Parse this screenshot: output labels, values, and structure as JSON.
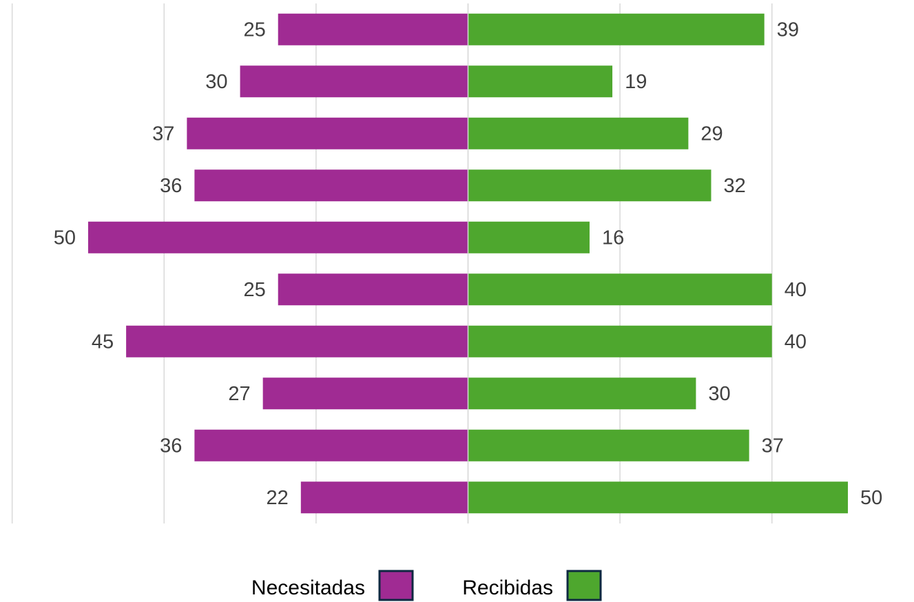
{
  "chart_data": {
    "type": "diverging-bar",
    "categories": [
      null,
      null,
      null,
      null,
      null,
      null,
      null,
      null,
      null,
      null
    ],
    "series": [
      {
        "name": "Necesitadas",
        "color": "#a02b93",
        "direction": "left",
        "values": [
          25,
          30,
          37,
          36,
          50,
          25,
          45,
          27,
          36,
          22
        ]
      },
      {
        "name": "Recibidas",
        "color": "#4ea72e",
        "direction": "right",
        "values": [
          39,
          19,
          29,
          32,
          16,
          40,
          40,
          30,
          37,
          50
        ]
      }
    ],
    "xlim": [
      -61.6,
      58.7
    ],
    "xticks": [
      -60,
      -40,
      -20,
      0,
      20,
      40
    ],
    "grid": true,
    "legend": "bottom"
  }
}
